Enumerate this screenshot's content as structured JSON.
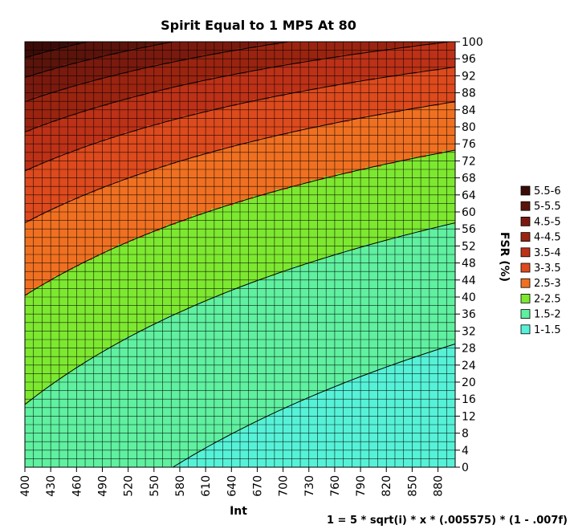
{
  "chart_data": {
    "type": "heatmap",
    "subtype": "filled-contour",
    "title": "Spirit Equal to 1 MP5 At 80",
    "xlabel": "Int",
    "ylabel": "FSR (%)",
    "formula": "1 = 5 * sqrt(i) * x * (.005575) * (1 - .007f)",
    "x_range": [
      400,
      900
    ],
    "y_range": [
      0,
      100
    ],
    "x_ticks": [
      "400",
      "430",
      "460",
      "490",
      "520",
      "550",
      "580",
      "610",
      "640",
      "670",
      "700",
      "730",
      "760",
      "790",
      "820",
      "850",
      "880"
    ],
    "y_ticks": [
      "0",
      "4",
      "8",
      "12",
      "16",
      "20",
      "24",
      "28",
      "32",
      "36",
      "40",
      "44",
      "48",
      "52",
      "56",
      "60",
      "64",
      "68",
      "72",
      "76",
      "80",
      "84",
      "88",
      "92",
      "96",
      "100"
    ],
    "grid": true,
    "legend_position": "right",
    "levels": [
      {
        "label": "5.5-6",
        "min": 5.5,
        "max": 6.0,
        "color": "#3b0c07"
      },
      {
        "label": "5-5.5",
        "min": 5.0,
        "max": 5.5,
        "color": "#5a140b"
      },
      {
        "label": "4.5-5",
        "min": 4.5,
        "max": 5.0,
        "color": "#7a1a0e"
      },
      {
        "label": "4-4.5",
        "min": 4.0,
        "max": 4.5,
        "color": "#9a2410"
      },
      {
        "label": "3.5-4",
        "min": 3.5,
        "max": 4.0,
        "color": "#bc3117"
      },
      {
        "label": "3-3.5",
        "min": 3.0,
        "max": 3.5,
        "color": "#dd4a1d"
      },
      {
        "label": "2.5-3",
        "min": 2.5,
        "max": 3.0,
        "color": "#f07021"
      },
      {
        "label": "2-2.5",
        "min": 2.0,
        "max": 2.5,
        "color": "#7de830"
      },
      {
        "label": "1.5-2",
        "min": 1.5,
        "max": 2.0,
        "color": "#5ff0a0"
      },
      {
        "label": "1-1.5",
        "min": 1.0,
        "max": 1.5,
        "color": "#56f2d8"
      }
    ]
  }
}
